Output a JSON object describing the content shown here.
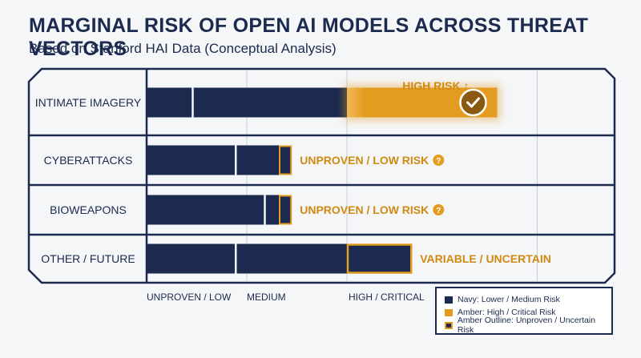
{
  "title": "MARGINAL RISK OF OPEN AI MODELS ACROSS THREAT VECTORS",
  "subtitle": "Based on Stanford HAI Data (Conceptual Analysis)",
  "colors": {
    "navy": "#1b2a4e",
    "amber": "#e39b20",
    "amber_text": "#d08a12",
    "background": "#f5f6f8"
  },
  "chart_data": {
    "type": "bar",
    "orientation": "horizontal",
    "categories": [
      "INTIMATE IMAGERY",
      "CYBERATTACKS",
      "BIOWEAPONS",
      "OTHER / FUTURE"
    ],
    "x_axis_ticks": [
      "UNPROVEN / LOW",
      "MEDIUM",
      "HIGH / CRITICAL"
    ],
    "xlim": [
      0,
      4
    ],
    "rows": [
      {
        "category": "INTIMATE IMAGERY",
        "segments": [
          {
            "from": 0,
            "to": 0.45,
            "style": "navy"
          },
          {
            "from": 0.47,
            "to": 2.0,
            "style": "navy"
          },
          {
            "from": 2.0,
            "to": 3.5,
            "style": "amber"
          }
        ],
        "annotation": "HIGH RISK ↑",
        "marker": "check-circle-icon"
      },
      {
        "category": "CYBERATTACKS",
        "segments": [
          {
            "from": 0,
            "to": 0.88,
            "style": "navy"
          },
          {
            "from": 0.9,
            "to": 1.32,
            "style": "navy"
          },
          {
            "from": 1.32,
            "to": 1.45,
            "style": "amber-outline"
          }
        ],
        "annotation": "UNPROVEN / LOW RISK",
        "annotation_icon": "question-circle-icon"
      },
      {
        "category": "BIOWEAPONS",
        "segments": [
          {
            "from": 0,
            "to": 1.17,
            "style": "navy"
          },
          {
            "from": 1.19,
            "to": 1.32,
            "style": "navy"
          },
          {
            "from": 1.32,
            "to": 1.45,
            "style": "amber-outline"
          }
        ],
        "annotation": "UNPROVEN / LOW RISK",
        "annotation_icon": "question-circle-icon"
      },
      {
        "category": "OTHER / FUTURE",
        "segments": [
          {
            "from": 0,
            "to": 0.88,
            "style": "navy"
          },
          {
            "from": 0.9,
            "to": 2.0,
            "style": "navy"
          },
          {
            "from": 2.0,
            "to": 2.65,
            "style": "amber-outline-navy"
          }
        ],
        "annotation": "VARIABLE / UNCERTAIN"
      }
    ],
    "legend": [
      {
        "label": "Navy: Lower / Medium Risk",
        "style": "navy"
      },
      {
        "label": "Amber: High / Critical Risk",
        "style": "amber"
      },
      {
        "label": "Amber Outline: Unproven / Uncertain Risk",
        "style": "amber-outline-navy"
      }
    ],
    "legend_position": "bottom-right"
  }
}
